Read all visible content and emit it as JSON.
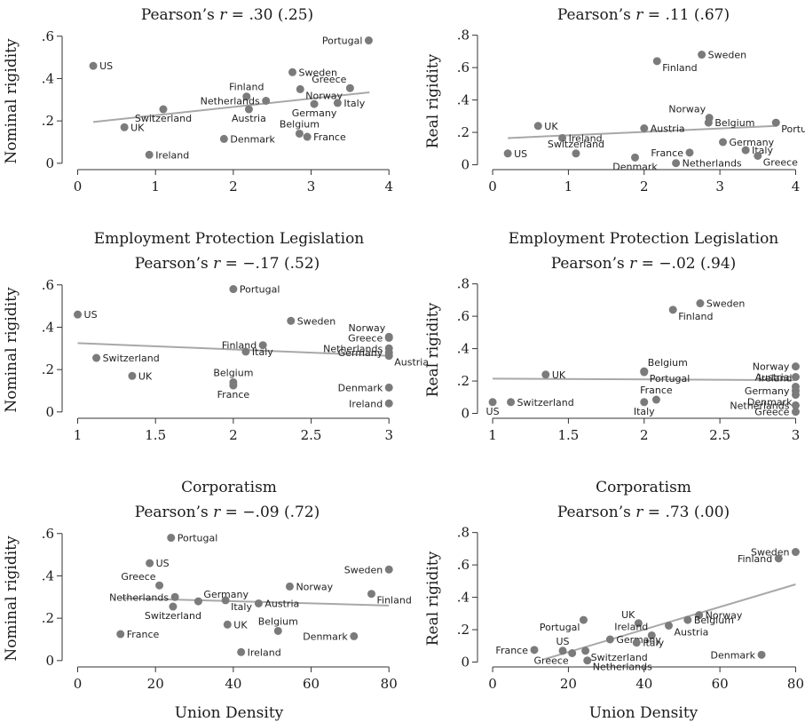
{
  "chart_data": [
    {
      "type": "scatter",
      "title": "Pearson’s r = .30 (.25)",
      "title_parts": {
        "pre": "Pearson’s ",
        "r": "r",
        "post": " = .30 (.25)"
      },
      "xlabel": "Employment Protection Legislation",
      "ylabel": "Nominal rigidity",
      "xlim": [
        -0.2,
        4.1
      ],
      "ylim": [
        -0.03,
        0.62
      ],
      "xticks": [
        {
          "v": 0,
          "l": "0"
        },
        {
          "v": 1,
          "l": "1"
        },
        {
          "v": 2,
          "l": "2"
        },
        {
          "v": 3,
          "l": "3"
        },
        {
          "v": 4,
          "l": "4"
        }
      ],
      "yticks": [
        {
          "v": 0,
          "l": "0"
        },
        {
          "v": 0.2,
          "l": ".2"
        },
        {
          "v": 0.4,
          "l": ".4"
        },
        {
          "v": 0.6,
          "l": ".6"
        }
      ],
      "fit": [
        [
          0.2,
          0.195
        ],
        [
          3.75,
          0.335
        ]
      ],
      "points": [
        {
          "label": "Portugal",
          "x": 3.74,
          "y": 0.58,
          "pos": "left"
        },
        {
          "label": "US",
          "x": 0.2,
          "y": 0.46,
          "pos": "right"
        },
        {
          "label": "Sweden",
          "x": 2.76,
          "y": 0.43,
          "pos": "right"
        },
        {
          "label": "Greece",
          "x": 3.5,
          "y": 0.355,
          "pos": "above-left"
        },
        {
          "label": "Norway",
          "x": 2.86,
          "y": 0.35,
          "pos": "right-below"
        },
        {
          "label": "Finland",
          "x": 2.17,
          "y": 0.315,
          "pos": "above"
        },
        {
          "label": "Netherlands",
          "x": 2.42,
          "y": 0.295,
          "pos": "left"
        },
        {
          "label": "Italy",
          "x": 3.34,
          "y": 0.285,
          "pos": "right"
        },
        {
          "label": "Germany",
          "x": 3.04,
          "y": 0.28,
          "pos": "below"
        },
        {
          "label": "Switzerland",
          "x": 1.1,
          "y": 0.255,
          "pos": "below"
        },
        {
          "label": "Austria",
          "x": 2.2,
          "y": 0.255,
          "pos": "below"
        },
        {
          "label": "UK",
          "x": 0.6,
          "y": 0.17,
          "pos": "right"
        },
        {
          "label": "Belgium",
          "x": 2.85,
          "y": 0.14,
          "pos": "above"
        },
        {
          "label": "France",
          "x": 2.95,
          "y": 0.125,
          "pos": "right"
        },
        {
          "label": "Denmark",
          "x": 1.88,
          "y": 0.115,
          "pos": "right"
        },
        {
          "label": "Ireland",
          "x": 0.92,
          "y": 0.04,
          "pos": "right"
        }
      ]
    },
    {
      "type": "scatter",
      "title": "Pearson’s r = .11 (.67)",
      "title_parts": {
        "pre": "Pearson’s ",
        "r": "r",
        "post": " = .11 (.67)"
      },
      "xlabel": "Employment Protection Legislation",
      "ylabel": "Real rigidity",
      "xlim": [
        -0.2,
        4.1
      ],
      "ylim": [
        -0.03,
        0.82
      ],
      "xticks": [
        {
          "v": 0,
          "l": "0"
        },
        {
          "v": 1,
          "l": "1"
        },
        {
          "v": 2,
          "l": "2"
        },
        {
          "v": 3,
          "l": "3"
        },
        {
          "v": 4,
          "l": "4"
        }
      ],
      "yticks": [
        {
          "v": 0,
          "l": "0"
        },
        {
          "v": 0.2,
          "l": ".2"
        },
        {
          "v": 0.4,
          "l": ".4"
        },
        {
          "v": 0.6,
          "l": ".6"
        },
        {
          "v": 0.8,
          "l": ".8"
        }
      ],
      "fit": [
        [
          0.2,
          0.165
        ],
        [
          3.75,
          0.24
        ]
      ],
      "points": [
        {
          "label": "Sweden",
          "x": 2.76,
          "y": 0.68,
          "pos": "right"
        },
        {
          "label": "Finland",
          "x": 2.17,
          "y": 0.64,
          "pos": "right-below"
        },
        {
          "label": "Norway",
          "x": 2.86,
          "y": 0.29,
          "pos": "above-left"
        },
        {
          "label": "Portugal",
          "x": 3.74,
          "y": 0.26,
          "pos": "right-below"
        },
        {
          "label": "Belgium",
          "x": 2.85,
          "y": 0.26,
          "pos": "right"
        },
        {
          "label": "UK",
          "x": 0.6,
          "y": 0.24,
          "pos": "right"
        },
        {
          "label": "Austria",
          "x": 2.0,
          "y": 0.225,
          "pos": "right"
        },
        {
          "label": "Ireland",
          "x": 0.92,
          "y": 0.165,
          "pos": "right"
        },
        {
          "label": "Germany",
          "x": 3.04,
          "y": 0.14,
          "pos": "right"
        },
        {
          "label": "Switzerland",
          "x": 1.1,
          "y": 0.07,
          "pos": "above"
        },
        {
          "label": "Italy",
          "x": 3.34,
          "y": 0.09,
          "pos": "right"
        },
        {
          "label": "France",
          "x": 2.6,
          "y": 0.075,
          "pos": "left"
        },
        {
          "label": "Greece",
          "x": 3.5,
          "y": 0.055,
          "pos": "right-below"
        },
        {
          "label": "US",
          "x": 0.2,
          "y": 0.07,
          "pos": "right"
        },
        {
          "label": "Denmark",
          "x": 1.88,
          "y": 0.045,
          "pos": "below"
        },
        {
          "label": "Netherlands",
          "x": 2.42,
          "y": 0.01,
          "pos": "right"
        }
      ]
    },
    {
      "type": "scatter",
      "title": "Pearson’s r = −.17 (.52)",
      "title_parts": {
        "pre": "Pearson’s ",
        "r": "r",
        "post": " = −.17 (.52)"
      },
      "xlabel": "Corporatism",
      "ylabel": "Nominal rigidity",
      "xlim": [
        0.9,
        3.05
      ],
      "ylim": [
        -0.03,
        0.62
      ],
      "xticks": [
        {
          "v": 1,
          "l": "1"
        },
        {
          "v": 1.5,
          "l": "1.5"
        },
        {
          "v": 2,
          "l": "2"
        },
        {
          "v": 2.5,
          "l": "2.5"
        },
        {
          "v": 3,
          "l": "3"
        }
      ],
      "yticks": [
        {
          "v": 0,
          "l": "0"
        },
        {
          "v": 0.2,
          "l": ".2"
        },
        {
          "v": 0.4,
          "l": ".4"
        },
        {
          "v": 0.6,
          "l": ".6"
        }
      ],
      "fit": [
        [
          1.0,
          0.325
        ],
        [
          3.0,
          0.265
        ]
      ],
      "points": [
        {
          "label": "Portugal",
          "x": 2.0,
          "y": 0.58,
          "pos": "right"
        },
        {
          "label": "US",
          "x": 1.0,
          "y": 0.46,
          "pos": "right"
        },
        {
          "label": "Sweden",
          "x": 2.37,
          "y": 0.43,
          "pos": "right"
        },
        {
          "label": "Norway",
          "x": 3.0,
          "y": 0.355,
          "pos": "above-left"
        },
        {
          "label": "Greece",
          "x": 3.0,
          "y": 0.35,
          "pos": "left"
        },
        {
          "label": "Finland",
          "x": 2.19,
          "y": 0.315,
          "pos": "left"
        },
        {
          "label": "Netherlands",
          "x": 3.0,
          "y": 0.3,
          "pos": "left"
        },
        {
          "label": "Italy",
          "x": 2.08,
          "y": 0.285,
          "pos": "right"
        },
        {
          "label": "Germany",
          "x": 3.0,
          "y": 0.28,
          "pos": "left"
        },
        {
          "label": "Austria",
          "x": 3.0,
          "y": 0.265,
          "pos": "right-below"
        },
        {
          "label": "Switzerland",
          "x": 1.12,
          "y": 0.255,
          "pos": "right"
        },
        {
          "label": "UK",
          "x": 1.35,
          "y": 0.17,
          "pos": "right"
        },
        {
          "label": "Belgium",
          "x": 2.0,
          "y": 0.14,
          "pos": "above"
        },
        {
          "label": "France",
          "x": 2.0,
          "y": 0.125,
          "pos": "below"
        },
        {
          "label": "Denmark",
          "x": 3.0,
          "y": 0.115,
          "pos": "left"
        },
        {
          "label": "Ireland",
          "x": 3.0,
          "y": 0.04,
          "pos": "left"
        }
      ]
    },
    {
      "type": "scatter",
      "title": "Pearson’s r = −.02 (.94)",
      "title_parts": {
        "pre": "Pearson’s ",
        "r": "r",
        "post": " = −.02 (.94)"
      },
      "xlabel": "Corporatism",
      "ylabel": "Real rigidity",
      "xlim": [
        0.9,
        3.05
      ],
      "ylim": [
        -0.03,
        0.82
      ],
      "xticks": [
        {
          "v": 1,
          "l": "1"
        },
        {
          "v": 1.5,
          "l": "1.5"
        },
        {
          "v": 2,
          "l": "2"
        },
        {
          "v": 2.5,
          "l": "2.5"
        },
        {
          "v": 3,
          "l": "3"
        }
      ],
      "yticks": [
        {
          "v": 0,
          "l": "0"
        },
        {
          "v": 0.2,
          "l": ".2"
        },
        {
          "v": 0.4,
          "l": ".4"
        },
        {
          "v": 0.6,
          "l": ".6"
        },
        {
          "v": 0.8,
          "l": ".8"
        }
      ],
      "fit": [
        [
          1.0,
          0.215
        ],
        [
          3.0,
          0.205
        ]
      ],
      "points": [
        {
          "label": "Sweden",
          "x": 2.37,
          "y": 0.68,
          "pos": "right"
        },
        {
          "label": "Finland",
          "x": 2.19,
          "y": 0.64,
          "pos": "right-below"
        },
        {
          "label": "Norway",
          "x": 3.0,
          "y": 0.29,
          "pos": "left"
        },
        {
          "label": "Belgium",
          "x": 2.0,
          "y": 0.26,
          "pos": "above-right"
        },
        {
          "label": "Portugal",
          "x": 2.0,
          "y": 0.255,
          "pos": "right-below"
        },
        {
          "label": "UK",
          "x": 1.35,
          "y": 0.24,
          "pos": "right"
        },
        {
          "label": "Austria",
          "x": 3.0,
          "y": 0.225,
          "pos": "left"
        },
        {
          "label": "Ireland",
          "x": 3.0,
          "y": 0.165,
          "pos": "above-left"
        },
        {
          "label": "Germany",
          "x": 3.0,
          "y": 0.14,
          "pos": "left"
        },
        {
          "label": "France",
          "x": 2.08,
          "y": 0.085,
          "pos": "above"
        },
        {
          "label": "Denmark",
          "x": 3.0,
          "y": 0.115,
          "pos": "below-left"
        },
        {
          "label": "Switzerland",
          "x": 1.12,
          "y": 0.07,
          "pos": "right"
        },
        {
          "label": "Italy",
          "x": 2.0,
          "y": 0.07,
          "pos": "below"
        },
        {
          "label": "Netherlands",
          "x": 3.0,
          "y": 0.05,
          "pos": "left"
        },
        {
          "label": "US",
          "x": 1.0,
          "y": 0.07,
          "pos": "below"
        },
        {
          "label": "Greece",
          "x": 3.0,
          "y": 0.01,
          "pos": "left"
        }
      ]
    },
    {
      "type": "scatter",
      "title": "Pearson’s r = −.09 (.72)",
      "title_parts": {
        "pre": "Pearson’s ",
        "r": "r",
        "post": " = −.09 (.72)"
      },
      "xlabel": "Union Density",
      "ylabel": "Nominal rigidity",
      "xlim": [
        -4,
        82
      ],
      "ylim": [
        -0.03,
        0.62
      ],
      "xticks": [
        {
          "v": 0,
          "l": "0"
        },
        {
          "v": 20,
          "l": "20"
        },
        {
          "v": 40,
          "l": "40"
        },
        {
          "v": 60,
          "l": "60"
        },
        {
          "v": 80,
          "l": "80"
        }
      ],
      "yticks": [
        {
          "v": 0,
          "l": "0"
        },
        {
          "v": 0.2,
          "l": ".2"
        },
        {
          "v": 0.4,
          "l": ".4"
        },
        {
          "v": 0.6,
          "l": ".6"
        }
      ],
      "fit": [
        [
          11,
          0.295
        ],
        [
          80,
          0.26
        ]
      ],
      "points": [
        {
          "label": "Portugal",
          "x": 24,
          "y": 0.58,
          "pos": "right"
        },
        {
          "label": "US",
          "x": 18.5,
          "y": 0.46,
          "pos": "right"
        },
        {
          "label": "Sweden",
          "x": 80,
          "y": 0.43,
          "pos": "left"
        },
        {
          "label": "Greece",
          "x": 21,
          "y": 0.355,
          "pos": "above-left"
        },
        {
          "label": "Norway",
          "x": 54.5,
          "y": 0.35,
          "pos": "right"
        },
        {
          "label": "Finland",
          "x": 75.5,
          "y": 0.315,
          "pos": "right-below"
        },
        {
          "label": "Netherlands",
          "x": 25,
          "y": 0.3,
          "pos": "left"
        },
        {
          "label": "Germany",
          "x": 31,
          "y": 0.28,
          "pos": "right-above"
        },
        {
          "label": "Italy",
          "x": 38,
          "y": 0.285,
          "pos": "right-below"
        },
        {
          "label": "Austria",
          "x": 46.5,
          "y": 0.27,
          "pos": "right"
        },
        {
          "label": "Switzerland",
          "x": 24.5,
          "y": 0.255,
          "pos": "below"
        },
        {
          "label": "UK",
          "x": 38.5,
          "y": 0.17,
          "pos": "right"
        },
        {
          "label": "Belgium",
          "x": 51.5,
          "y": 0.14,
          "pos": "above"
        },
        {
          "label": "France",
          "x": 11,
          "y": 0.125,
          "pos": "right"
        },
        {
          "label": "Denmark",
          "x": 71,
          "y": 0.115,
          "pos": "left"
        },
        {
          "label": "Ireland",
          "x": 42,
          "y": 0.04,
          "pos": "right"
        }
      ]
    },
    {
      "type": "scatter",
      "title": "Pearson’s r = .73 (.00)",
      "title_parts": {
        "pre": "Pearson’s ",
        "r": "r",
        "post": " = .73 (.00)"
      },
      "xlabel": "Union Density",
      "ylabel": "Real rigidity",
      "xlim": [
        -4,
        82
      ],
      "ylim": [
        -0.03,
        0.82
      ],
      "xticks": [
        {
          "v": 0,
          "l": "0"
        },
        {
          "v": 20,
          "l": "20"
        },
        {
          "v": 40,
          "l": "40"
        },
        {
          "v": 60,
          "l": "60"
        },
        {
          "v": 80,
          "l": "80"
        }
      ],
      "yticks": [
        {
          "v": 0,
          "l": "0"
        },
        {
          "v": 0.2,
          "l": ".2"
        },
        {
          "v": 0.4,
          "l": ".4"
        },
        {
          "v": 0.6,
          "l": ".6"
        },
        {
          "v": 0.8,
          "l": ".8"
        }
      ],
      "fit": [
        [
          14,
          0.02
        ],
        [
          80,
          0.48
        ]
      ],
      "points": [
        {
          "label": "Sweden",
          "x": 80,
          "y": 0.68,
          "pos": "left"
        },
        {
          "label": "Finland",
          "x": 75.5,
          "y": 0.64,
          "pos": "left"
        },
        {
          "label": "Norway",
          "x": 54.5,
          "y": 0.29,
          "pos": "right"
        },
        {
          "label": "Portugal",
          "x": 24,
          "y": 0.26,
          "pos": "below-left"
        },
        {
          "label": "Belgium",
          "x": 51.5,
          "y": 0.26,
          "pos": "right"
        },
        {
          "label": "UK",
          "x": 38.5,
          "y": 0.24,
          "pos": "above-left"
        },
        {
          "label": "Austria",
          "x": 46.5,
          "y": 0.225,
          "pos": "right-below"
        },
        {
          "label": "Ireland",
          "x": 42,
          "y": 0.165,
          "pos": "above-left"
        },
        {
          "label": "Germany",
          "x": 31,
          "y": 0.14,
          "pos": "right"
        },
        {
          "label": "Italy",
          "x": 38,
          "y": 0.12,
          "pos": "right"
        },
        {
          "label": "France",
          "x": 11,
          "y": 0.075,
          "pos": "left"
        },
        {
          "label": "US",
          "x": 18.5,
          "y": 0.07,
          "pos": "above"
        },
        {
          "label": "Switzerland",
          "x": 24.5,
          "y": 0.07,
          "pos": "right-below"
        },
        {
          "label": "Greece",
          "x": 21,
          "y": 0.055,
          "pos": "below-left"
        },
        {
          "label": "Denmark",
          "x": 71,
          "y": 0.045,
          "pos": "left"
        },
        {
          "label": "Netherlands",
          "x": 25,
          "y": 0.01,
          "pos": "right-below"
        }
      ]
    }
  ],
  "colors": {
    "point": "#7b7b7b",
    "fit": "#a8a8a8",
    "axis": "#333333",
    "text": "#1a1a1a"
  }
}
